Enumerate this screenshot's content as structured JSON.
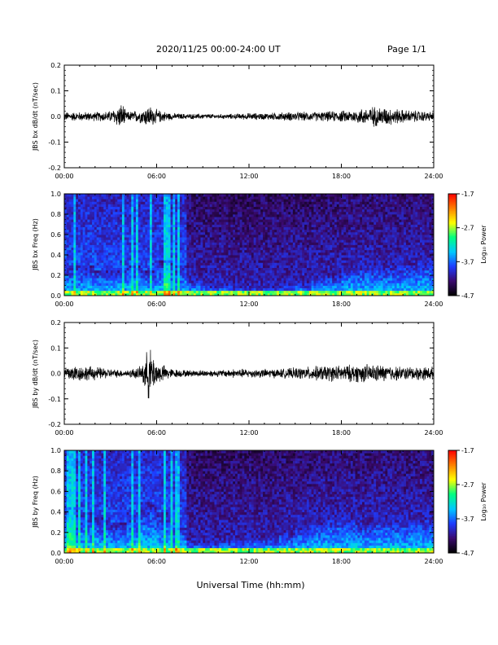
{
  "header": {
    "date_range": "2020/11/25  00:00-24:00 UT",
    "page": "Page 1/1"
  },
  "xaxis": {
    "label": "Universal Time (hh:mm)",
    "ticks": [
      "00:00",
      "06:00",
      "12:00",
      "18:00",
      "24:00"
    ]
  },
  "colors": {
    "trace": "#000000",
    "colormap": [
      "#000000",
      "#3a0a6e",
      "#1e3cff",
      "#00c8ff",
      "#00ff80",
      "#ffff00",
      "#ff8000",
      "#ff0000"
    ]
  },
  "chart_data": [
    {
      "type": "line",
      "title": "",
      "xlabel": "",
      "ylabel": "JBS bx dB/dt (nT/sec)",
      "xlim": [
        0,
        24
      ],
      "ylim": [
        -0.2,
        0.2
      ],
      "yticks": [
        "0.2",
        "0.1",
        "0.0",
        "-0.1",
        "-0.2"
      ],
      "series": [
        {
          "x": [
            0,
            1,
            2,
            3,
            3.8,
            4,
            5,
            5.5,
            6,
            7,
            8,
            9,
            10,
            11,
            12,
            13,
            14,
            15,
            16,
            17,
            18,
            19,
            20,
            21,
            22,
            23,
            24
          ],
          "amplitude": [
            0.02,
            0.02,
            0.02,
            0.025,
            0.06,
            0.02,
            0.03,
            0.05,
            0.03,
            0.015,
            0.012,
            0.012,
            0.01,
            0.012,
            0.015,
            0.015,
            0.018,
            0.02,
            0.02,
            0.022,
            0.025,
            0.03,
            0.045,
            0.04,
            0.03,
            0.025,
            0.02
          ]
        }
      ]
    },
    {
      "type": "heatmap",
      "title": "",
      "xlabel": "",
      "ylabel": "JBS bx Freq (Hz)",
      "xlim": [
        0,
        24
      ],
      "ylim": [
        0.0,
        1.0
      ],
      "yticks": [
        "1.0",
        "0.8",
        "0.6",
        "0.4",
        "0.2",
        "0.0"
      ],
      "colorbar": {
        "label": "Log₁₀ Power",
        "range": [
          -4.7,
          -1.7
        ],
        "ticks": [
          "-1.7",
          "-2.7",
          "-3.7",
          "-4.7"
        ]
      },
      "band_top_freq": [
        0.3,
        0.3,
        0.25,
        0.25,
        0.3,
        0.25,
        0.35,
        0.3,
        0.15,
        0.1,
        0.1,
        0.08,
        0.08,
        0.08,
        0.1,
        0.12,
        0.18,
        0.2,
        0.28,
        0.3,
        0.3,
        0.3,
        0.32,
        0.35
      ]
    },
    {
      "type": "line",
      "title": "",
      "xlabel": "",
      "ylabel": "JBS by dB/dt (nT/sec)",
      "xlim": [
        0,
        24
      ],
      "ylim": [
        -0.2,
        0.2
      ],
      "yticks": [
        "0.2",
        "0.1",
        "0.0",
        "-0.1",
        "-0.2"
      ],
      "series": [
        {
          "x": [
            0,
            1,
            2,
            3,
            4,
            5,
            5.5,
            6,
            7,
            8,
            9,
            10,
            11,
            12,
            13,
            14,
            15,
            16,
            17,
            18,
            19,
            20,
            21,
            22,
            23,
            24
          ],
          "amplitude": [
            0.04,
            0.035,
            0.03,
            0.02,
            0.015,
            0.03,
            0.12,
            0.05,
            0.02,
            0.015,
            0.015,
            0.015,
            0.02,
            0.02,
            0.02,
            0.02,
            0.025,
            0.03,
            0.035,
            0.035,
            0.04,
            0.04,
            0.035,
            0.03,
            0.03,
            0.03
          ]
        }
      ]
    },
    {
      "type": "heatmap",
      "title": "",
      "xlabel": "",
      "ylabel": "JBS by Freq (Hz)",
      "xlim": [
        0,
        24
      ],
      "ylim": [
        0.0,
        1.0
      ],
      "yticks": [
        "1.0",
        "0.8",
        "0.6",
        "0.4",
        "0.2",
        "0.0"
      ],
      "colorbar": {
        "label": "Log₁₀ Power",
        "range": [
          -4.7,
          -1.7
        ],
        "ticks": [
          "-1.7",
          "-2.7",
          "-3.7",
          "-4.7"
        ]
      },
      "band_top_freq": [
        0.45,
        0.4,
        0.35,
        0.3,
        0.4,
        0.5,
        0.4,
        0.25,
        0.12,
        0.1,
        0.12,
        0.12,
        0.15,
        0.15,
        0.2,
        0.25,
        0.3,
        0.35,
        0.35,
        0.3,
        0.35,
        0.35,
        0.35,
        0.35
      ]
    }
  ]
}
